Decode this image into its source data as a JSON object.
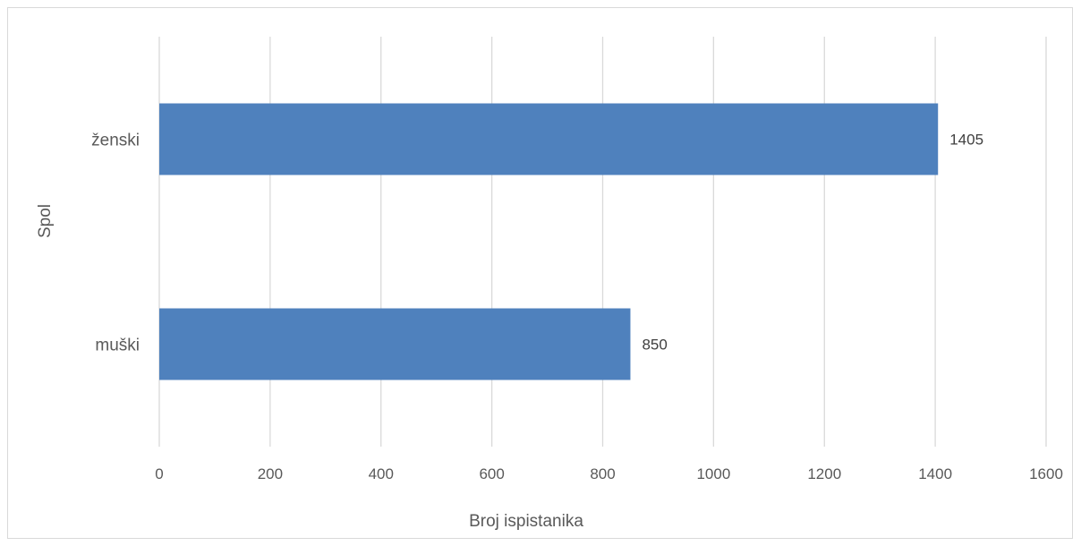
{
  "chart_data": {
    "type": "bar",
    "orientation": "horizontal",
    "categories": [
      "ženski",
      "muški"
    ],
    "values": [
      1405,
      850
    ],
    "data_labels": [
      "1405",
      "850"
    ],
    "xlabel": "Broj ispistanika",
    "ylabel": "Spol",
    "xlim": [
      0,
      1600
    ],
    "x_ticks": [
      0,
      200,
      400,
      600,
      800,
      1000,
      1200,
      1400,
      1600
    ],
    "x_tick_labels": [
      "0",
      "200",
      "400",
      "600",
      "800",
      "1000",
      "1200",
      "1400",
      "1600"
    ],
    "grid": "vertical",
    "legend": "none",
    "colors": {
      "bar": "#4f81bd",
      "grid": "#d9d9d9",
      "text": "#595959"
    }
  }
}
